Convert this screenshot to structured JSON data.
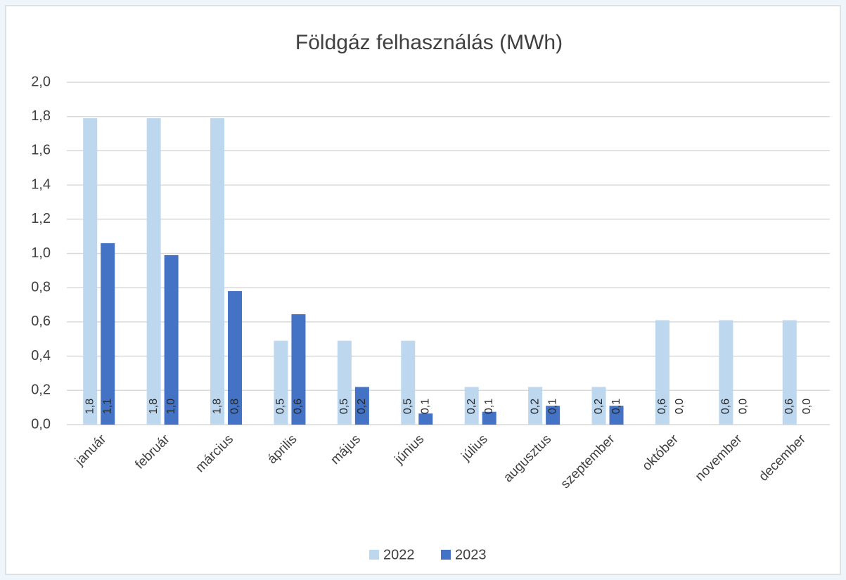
{
  "chart_data": {
    "type": "bar",
    "title": "Földgáz felhasználás (MWh)",
    "categories": [
      "január",
      "február",
      "március",
      "április",
      "május",
      "június",
      "július",
      "augusztus",
      "szeptember",
      "október",
      "november",
      "december"
    ],
    "series": [
      {
        "name": "2022",
        "color": "#bdd7ee",
        "values": [
          1.79,
          1.79,
          1.79,
          0.49,
          0.49,
          0.49,
          0.22,
          0.22,
          0.22,
          0.61,
          0.61,
          0.61
        ],
        "value_labels": [
          "1,8",
          "1,8",
          "1,8",
          "0,5",
          "0,5",
          "0,5",
          "0,2",
          "0,2",
          "0,2",
          "0,6",
          "0,6",
          "0,6"
        ]
      },
      {
        "name": "2023",
        "color": "#4472c4",
        "values": [
          1.06,
          0.99,
          0.78,
          0.645,
          0.22,
          0.065,
          0.075,
          0.11,
          0.11,
          0,
          0,
          0
        ],
        "value_labels": [
          "1,1",
          "1,0",
          "0,8",
          "0,6",
          "0,2",
          "0,1",
          "0,1",
          "0,1",
          "0,1",
          "0,0",
          "0,0",
          "0,0"
        ]
      }
    ],
    "ylim": [
      0,
      2
    ],
    "yticks": [
      {
        "value": 0,
        "label": "0,0"
      },
      {
        "value": 0.2,
        "label": "0,2"
      },
      {
        "value": 0.4,
        "label": "0,4"
      },
      {
        "value": 0.6,
        "label": "0,6"
      },
      {
        "value": 0.8,
        "label": "0,8"
      },
      {
        "value": 1,
        "label": "1,0"
      },
      {
        "value": 1.2,
        "label": "1,2"
      },
      {
        "value": 1.4,
        "label": "1,4"
      },
      {
        "value": 1.6,
        "label": "1,6"
      },
      {
        "value": 1.8,
        "label": "1,8"
      },
      {
        "value": 2,
        "label": "2,0"
      }
    ],
    "grid": true,
    "legend": "bottom"
  }
}
